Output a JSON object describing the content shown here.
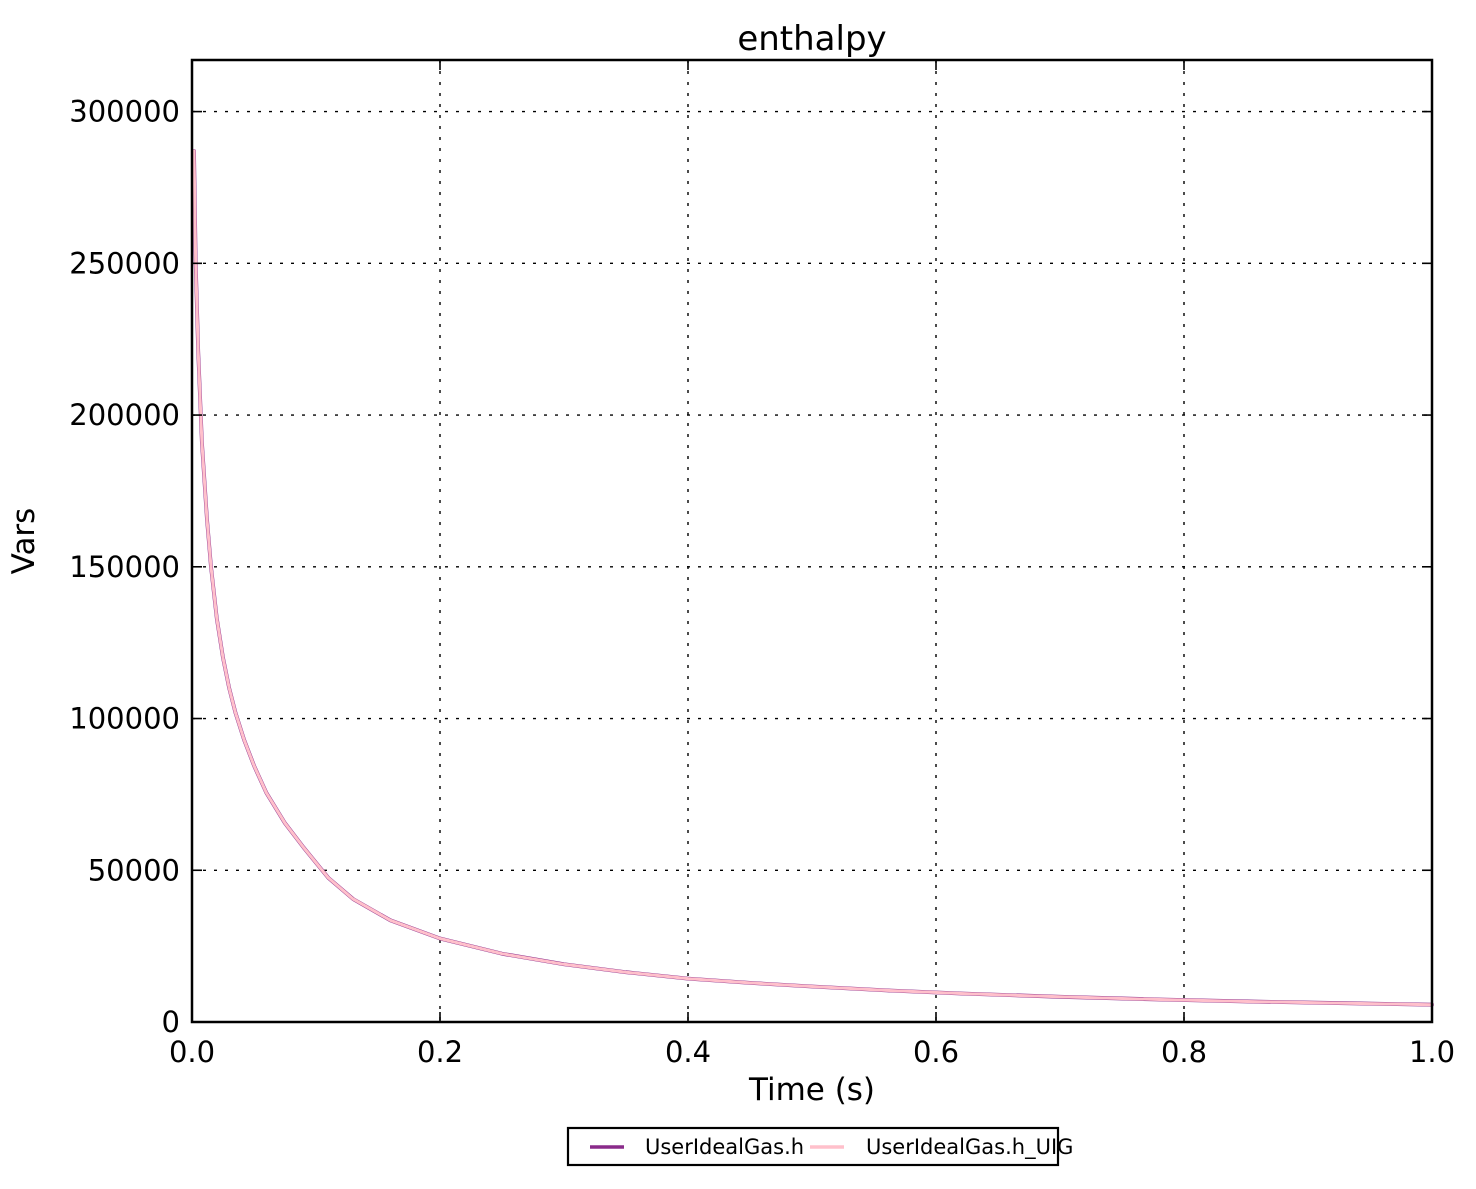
{
  "chart_data": {
    "type": "line",
    "title": "enthalpy",
    "xlabel": "Time (s)",
    "ylabel": "Vars",
    "xlim": [
      0.0,
      1.0
    ],
    "ylim": [
      0,
      317000
    ],
    "x_ticks": [
      "0.0",
      "0.2",
      "0.4",
      "0.6",
      "0.8",
      "1.0"
    ],
    "y_ticks": [
      "0",
      "50000",
      "100000",
      "150000",
      "200000",
      "250000",
      "300000"
    ],
    "grid": "dotted",
    "legend_position": "bottom-center",
    "frame_color": "#000000",
    "x": [
      0.0016,
      0.003,
      0.005,
      0.008,
      0.012,
      0.0153,
      0.02,
      0.025,
      0.03,
      0.035,
      0.042,
      0.05,
      0.06,
      0.075,
      0.09,
      0.11,
      0.13,
      0.16,
      0.2,
      0.25,
      0.3,
      0.35,
      0.4,
      0.45,
      0.5,
      0.56,
      0.62,
      0.7,
      0.78,
      0.86,
      0.93,
      1.0
    ],
    "series": [
      {
        "name": "UserIdealGas.h",
        "color": "#8a2b8a",
        "line_width": 3.8,
        "values": [
          287000,
          250000,
          221000,
          191000,
          166000,
          150000,
          133000,
          120000,
          110000,
          102000,
          93000,
          84500,
          75500,
          65500,
          57500,
          47500,
          40500,
          33500,
          27500,
          22500,
          19000,
          16400,
          14300,
          12900,
          11700,
          10400,
          9400,
          8300,
          7400,
          6700,
          6200,
          5700
        ]
      },
      {
        "name": "UserIdealGas.h_UIG",
        "color": "#ffc0cb",
        "line_width": 3.0,
        "values": [
          287000,
          250000,
          221000,
          191000,
          166000,
          150000,
          133000,
          120000,
          110000,
          102000,
          93000,
          84500,
          75500,
          65500,
          57500,
          47500,
          40500,
          33500,
          27500,
          22500,
          19000,
          16400,
          14300,
          12900,
          11700,
          10400,
          9400,
          8300,
          7400,
          6700,
          6200,
          5700
        ]
      }
    ]
  }
}
